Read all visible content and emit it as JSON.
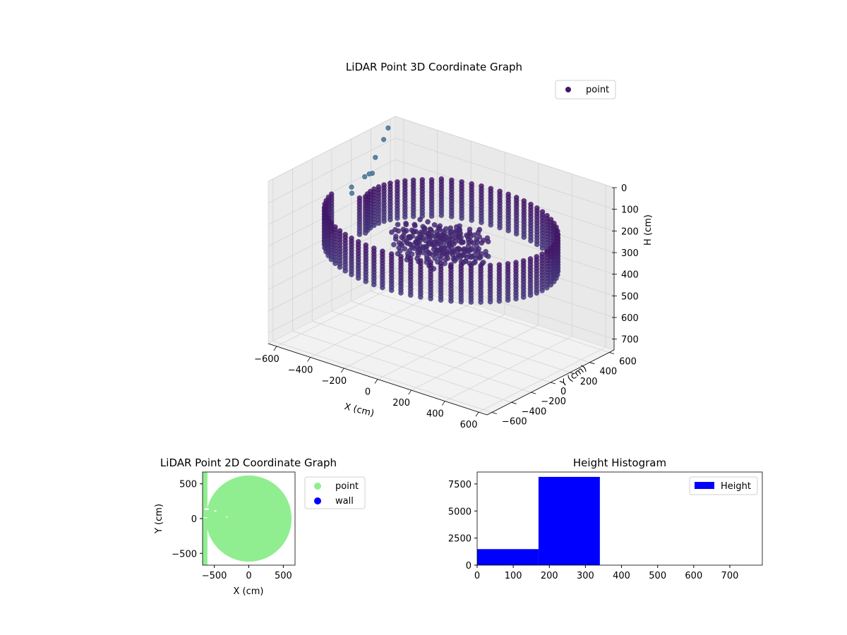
{
  "chart_data": [
    {
      "type": "scatter",
      "title": "LiDAR Point 3D Coordinate Graph",
      "xlabel": "X (cm)",
      "ylabel": "Y (cm)",
      "zlabel": "H (cm)",
      "xlim": [
        -650,
        650
      ],
      "ylim": [
        -650,
        650
      ],
      "zlim": [
        750,
        0
      ],
      "xticks": [
        "−600",
        "−400",
        "−200",
        "0",
        "200",
        "400",
        "600"
      ],
      "yticks": [
        "−600",
        "−400",
        "−200",
        "0",
        "200",
        "400",
        "600"
      ],
      "zticks": [
        "0",
        "100",
        "200",
        "300",
        "400",
        "500",
        "600",
        "700"
      ],
      "legend": {
        "placement": "upper-right",
        "entries": [
          {
            "label": "point",
            "color": "#45176b"
          }
        ]
      },
      "grid": true,
      "colormap": "viridis",
      "series": [
        {
          "name": "point",
          "shape": "cylindrical wall of radius ~600 cm, heights 170–340 cm, with an inward-bent section near the negative-X side",
          "x_range": [
            -650,
            650
          ],
          "y_range": [
            -650,
            650
          ],
          "h_range": [
            170,
            340
          ],
          "color": "#45176b"
        },
        {
          "name": "outliers",
          "points": [
            {
              "x": -640,
              "y": 560,
              "h": 30
            },
            {
              "x": -620,
              "y": 480,
              "h": 60
            },
            {
              "x": -600,
              "y": 360,
              "h": 110
            },
            {
              "x": -560,
              "y": 260,
              "h": 150
            },
            {
              "x": -520,
              "y": 160,
              "h": 120
            },
            {
              "x": -640,
              "y": 320,
              "h": 200
            },
            {
              "x": -660,
              "y": 220,
              "h": 230
            },
            {
              "x": -600,
              "y": 120,
              "h": 220
            }
          ],
          "color": "#5a86a8"
        }
      ]
    },
    {
      "type": "scatter",
      "title": "LiDAR Point 2D Coordinate Graph",
      "xlabel": "X (cm)",
      "ylabel": "Y (cm)",
      "xlim": [
        -670,
        670
      ],
      "ylim": [
        -670,
        670
      ],
      "xticks": [
        "−500",
        "0",
        "500"
      ],
      "yticks": [
        "−500",
        "0",
        "500"
      ],
      "legend": {
        "placement": "outside-right",
        "entries": [
          {
            "label": "point",
            "color": "#90ee90"
          },
          {
            "label": "wall",
            "color": "#0000ff"
          }
        ]
      },
      "series": [
        {
          "name": "point",
          "shape": "filled disc of radius ~620 cm",
          "color": "#90ee90"
        },
        {
          "name": "wall",
          "points": [],
          "color": "#0000ff"
        }
      ]
    },
    {
      "type": "bar",
      "title": "Height Histogram",
      "xlabel": "",
      "ylabel": "",
      "xlim": [
        0,
        790
      ],
      "ylim": [
        0,
        8600
      ],
      "xticks": [
        "0",
        "100",
        "200",
        "300",
        "400",
        "500",
        "600",
        "700"
      ],
      "yticks": [
        "0",
        "2500",
        "5000",
        "7500"
      ],
      "legend": {
        "placement": "upper-right",
        "entries": [
          {
            "label": "Height",
            "color": "#0000ff"
          }
        ]
      },
      "bins": [
        {
          "x0": 0,
          "x1": 170,
          "count": 1480
        },
        {
          "x0": 170,
          "x1": 340,
          "count": 8150
        },
        {
          "x0": 340,
          "x1": 510,
          "count": 0
        },
        {
          "x0": 510,
          "x1": 680,
          "count": 0
        },
        {
          "x0": 680,
          "x1": 790,
          "count": 0
        }
      ],
      "color": "#0000ff"
    }
  ]
}
